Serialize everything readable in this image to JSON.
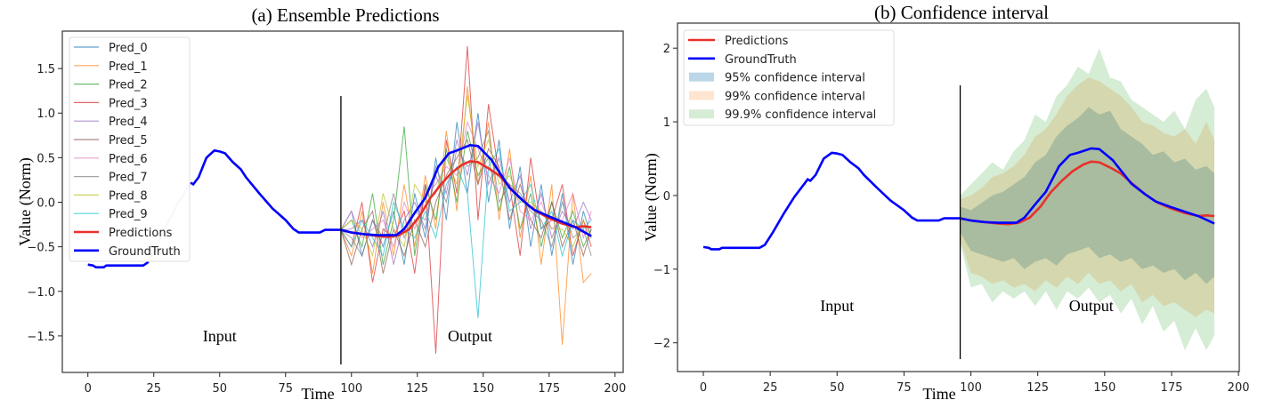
{
  "chart_data": [
    {
      "type": "line",
      "title": "(a) Ensemble Predictions",
      "xlabel": "Time",
      "ylabel": "Value (Norm)",
      "xlim": [
        -9.7,
        203.1
      ],
      "ylim": [
        -1.91,
        1.92
      ],
      "xticks": [
        0,
        25,
        50,
        75,
        100,
        125,
        150,
        175,
        200
      ],
      "yticks": [
        -1.5,
        -1.0,
        -0.5,
        0.0,
        0.5,
        1.0,
        1.5
      ],
      "ytick_labels": [
        "−1.5",
        "−1.0",
        "−0.5",
        "0.0",
        "0.5",
        "1.0",
        "1.5"
      ],
      "grid": false,
      "legend_position": "top-left",
      "split_line_x": 96,
      "annotations": [
        {
          "text": "Input",
          "x": 50,
          "y": -1.5
        },
        {
          "text": "Output",
          "x": 145,
          "y": -1.5
        }
      ],
      "ensemble_x": [
        96,
        100,
        104,
        108,
        112,
        116,
        120,
        124,
        128,
        132,
        136,
        140,
        144,
        148,
        152,
        156,
        160,
        164,
        168,
        172,
        176,
        180,
        184,
        188,
        191
      ],
      "ensemble": [
        {
          "name": "Pred_0",
          "color": "#1f77b4",
          "values": [
            -0.31,
            -0.1,
            -0.6,
            -0.2,
            -0.5,
            -0.1,
            -0.7,
            0.1,
            -0.4,
            0.5,
            -0.2,
            0.9,
            0.1,
            1.0,
            0.0,
            0.7,
            -0.3,
            0.4,
            -0.5,
            0.2,
            -0.6,
            0.1,
            -0.7,
            -0.1,
            -0.4
          ]
        },
        {
          "name": "Pred_1",
          "color": "#ff7f0e",
          "values": [
            -0.31,
            -0.6,
            -0.1,
            -0.8,
            0.0,
            -0.6,
            0.2,
            -0.5,
            0.3,
            -0.3,
            0.8,
            -0.1,
            1.3,
            0.2,
            0.9,
            -0.2,
            0.6,
            -0.4,
            0.3,
            -0.7,
            0.2,
            -1.6,
            0.1,
            -0.9,
            -0.8
          ]
        },
        {
          "name": "Pred_2",
          "color": "#2ca02c",
          "values": [
            -0.31,
            -0.2,
            -0.5,
            0.1,
            -0.7,
            -0.2,
            0.85,
            -0.6,
            0.2,
            -0.2,
            0.6,
            0.0,
            0.8,
            0.3,
            0.5,
            -0.1,
            0.4,
            -0.3,
            0.1,
            -0.5,
            0.0,
            -0.4,
            -0.1,
            -0.5,
            -0.3
          ]
        },
        {
          "name": "Pred_3",
          "color": "#d62728",
          "values": [
            -0.31,
            -0.5,
            0.0,
            -0.9,
            -0.3,
            -0.4,
            -0.1,
            -0.8,
            0.2,
            -1.7,
            0.7,
            0.1,
            1.75,
            -0.2,
            1.1,
            0.3,
            0.2,
            -0.6,
            0.5,
            -0.3,
            -0.2,
            0.2,
            -0.6,
            -0.2,
            -0.5
          ]
        },
        {
          "name": "Pred_4",
          "color": "#9467bd",
          "values": [
            -0.31,
            -0.3,
            -0.2,
            -0.5,
            -0.1,
            -0.7,
            -0.2,
            0.0,
            -0.3,
            0.4,
            0.1,
            0.7,
            0.3,
            0.9,
            0.2,
            0.5,
            0.0,
            0.3,
            -0.3,
            0.1,
            -0.4,
            -0.1,
            -0.3,
            0.0,
            -0.2
          ]
        },
        {
          "name": "Pred_5",
          "color": "#8c564b",
          "values": [
            -0.31,
            -0.7,
            -0.3,
            -0.1,
            -0.8,
            -0.3,
            -0.6,
            -0.2,
            -0.5,
            0.0,
            0.3,
            0.5,
            0.7,
            0.2,
            0.6,
            0.4,
            -0.2,
            0.2,
            -0.2,
            -0.4,
            0.0,
            -0.5,
            -0.2,
            -0.6,
            -0.3
          ]
        },
        {
          "name": "Pred_6",
          "color": "#e377c2",
          "values": [
            -0.31,
            -0.1,
            -0.4,
            -0.3,
            -0.2,
            -0.5,
            0.0,
            -0.3,
            0.1,
            0.2,
            0.4,
            0.3,
            0.9,
            0.6,
            0.3,
            0.1,
            0.5,
            -0.1,
            -0.2,
            0.0,
            -0.3,
            -0.2,
            0.1,
            -0.4,
            -0.1
          ]
        },
        {
          "name": "Pred_7",
          "color": "#7f7f7f",
          "values": [
            -0.31,
            -0.4,
            -0.6,
            -0.2,
            -0.4,
            0.1,
            -0.4,
            -0.1,
            -0.2,
            0.3,
            0.0,
            0.6,
            0.4,
            0.5,
            0.8,
            0.0,
            0.2,
            0.1,
            -0.1,
            -0.2,
            -0.5,
            0.0,
            -0.4,
            -0.3,
            -0.6
          ]
        },
        {
          "name": "Pred_8",
          "color": "#bcbd22",
          "values": [
            -0.31,
            -0.2,
            -0.3,
            -0.6,
            0.1,
            -0.3,
            -0.5,
            0.2,
            0.0,
            0.1,
            0.5,
            0.2,
            1.2,
            0.4,
            0.7,
            0.2,
            0.3,
            0.0,
            0.0,
            -0.1,
            -0.3,
            -0.3,
            -0.5,
            -0.2,
            -0.4
          ]
        },
        {
          "name": "Pred_9",
          "color": "#17becf",
          "values": [
            -0.31,
            -0.5,
            -0.2,
            -0.4,
            -0.6,
            0.0,
            -0.3,
            -0.4,
            -0.1,
            -0.4,
            0.2,
            0.4,
            0.1,
            -1.3,
            0.4,
            0.6,
            -0.1,
            0.0,
            0.2,
            -0.3,
            -0.1,
            -0.6,
            -0.2,
            -0.3,
            -0.2
          ]
        }
      ],
      "legend": [
        "Pred_0",
        "Pred_1",
        "Pred_2",
        "Pred_3",
        "Pred_4",
        "Pred_5",
        "Pred_6",
        "Pred_7",
        "Pred_8",
        "Pred_9",
        "Predictions",
        "GroundTruth"
      ]
    },
    {
      "type": "area",
      "title": "(b) Confidence interval",
      "xlabel": "Time",
      "ylabel": "Value (Norm)",
      "xlim": [
        -9.65,
        200.3
      ],
      "ylim": [
        -2.39,
        2.34
      ],
      "xticks": [
        0,
        25,
        50,
        75,
        100,
        125,
        150,
        175,
        200
      ],
      "yticks": [
        -2,
        -1,
        0,
        1,
        2
      ],
      "ytick_labels": [
        "−2",
        "−1",
        "0",
        "1",
        "2"
      ],
      "grid": false,
      "legend_position": "top-left",
      "split_line_x": 96,
      "annotations": [
        {
          "text": "Input",
          "x": 50,
          "y": -1.5
        },
        {
          "text": "Output",
          "x": 145,
          "y": -1.5
        }
      ],
      "band_x": [
        96,
        100,
        104,
        108,
        112,
        116,
        120,
        124,
        128,
        132,
        136,
        140,
        144,
        148,
        152,
        156,
        160,
        164,
        168,
        172,
        176,
        180,
        184,
        188,
        191
      ],
      "bands": [
        {
          "name": "95% confidence interval",
          "color": "#1f77b4",
          "opacity": 0.3,
          "upper": [
            -0.15,
            -0.2,
            -0.1,
            0.0,
            0.05,
            0.15,
            0.25,
            0.45,
            0.55,
            0.8,
            0.95,
            1.05,
            1.2,
            1.1,
            1.15,
            0.9,
            0.8,
            0.7,
            0.55,
            0.6,
            0.45,
            0.5,
            0.35,
            0.4,
            0.3
          ],
          "lower": [
            -0.5,
            -0.75,
            -0.8,
            -0.85,
            -0.9,
            -0.85,
            -1.0,
            -0.9,
            -0.85,
            -0.95,
            -0.8,
            -0.75,
            -0.7,
            -0.85,
            -0.8,
            -0.9,
            -0.85,
            -1.0,
            -0.95,
            -1.05,
            -1.0,
            -1.15,
            -1.05,
            -1.2,
            -1.1
          ]
        },
        {
          "name": "99% confidence interval",
          "color": "#ff7f0e",
          "opacity": 0.2,
          "upper": [
            -0.05,
            0.0,
            0.1,
            0.25,
            0.3,
            0.4,
            0.55,
            0.8,
            0.9,
            1.1,
            1.35,
            1.5,
            1.6,
            1.55,
            1.45,
            1.35,
            1.2,
            1.0,
            0.95,
            0.85,
            0.8,
            0.9,
            0.7,
            1.0,
            0.75
          ],
          "lower": [
            -0.6,
            -1.05,
            -1.1,
            -1.2,
            -1.15,
            -1.25,
            -1.2,
            -1.3,
            -1.15,
            -1.25,
            -1.1,
            -1.2,
            -1.05,
            -1.2,
            -1.15,
            -1.3,
            -1.2,
            -1.45,
            -1.35,
            -1.5,
            -1.45,
            -1.55,
            -1.65,
            -1.55,
            -1.6
          ]
        },
        {
          "name": "99.9% confidence interval",
          "color": "#2ca02c",
          "opacity": 0.2,
          "upper": [
            0.0,
            0.15,
            0.3,
            0.45,
            0.35,
            0.6,
            0.75,
            1.1,
            1.0,
            1.35,
            1.5,
            1.75,
            1.65,
            2.0,
            1.6,
            1.55,
            1.3,
            1.2,
            1.1,
            1.0,
            1.15,
            0.9,
            1.3,
            1.45,
            1.2
          ],
          "lower": [
            -0.65,
            -1.25,
            -1.2,
            -1.45,
            -1.3,
            -1.4,
            -1.3,
            -1.5,
            -1.3,
            -1.55,
            -1.3,
            -1.4,
            -1.25,
            -1.45,
            -1.35,
            -1.6,
            -1.4,
            -1.75,
            -1.5,
            -1.85,
            -1.7,
            -2.1,
            -1.8,
            -2.1,
            -1.9
          ]
        }
      ],
      "legend": [
        "Predictions",
        "GroundTruth",
        "95% confidence interval",
        "99% confidence interval",
        "99.9% confidence interval"
      ]
    }
  ],
  "ground_truth": {
    "name": "GroundTruth",
    "color": "#0000ff",
    "x": [
      0,
      2,
      3,
      6,
      7,
      21,
      23,
      26,
      30,
      34,
      38,
      39,
      40,
      42,
      45,
      48,
      50,
      52,
      55,
      58,
      60,
      65,
      70,
      75,
      78,
      80,
      88,
      90,
      96,
      100,
      105,
      110,
      117,
      120,
      124,
      128,
      133,
      137,
      140,
      145,
      148,
      153,
      160,
      165,
      169,
      175,
      180,
      185,
      191
    ],
    "y": [
      -0.7,
      -0.71,
      -0.73,
      -0.73,
      -0.71,
      -0.71,
      -0.67,
      -0.5,
      -0.25,
      -0.02,
      0.17,
      0.22,
      0.2,
      0.28,
      0.5,
      0.58,
      0.57,
      0.55,
      0.45,
      0.37,
      0.28,
      0.1,
      -0.07,
      -0.2,
      -0.3,
      -0.34,
      -0.34,
      -0.31,
      -0.31,
      -0.34,
      -0.36,
      -0.37,
      -0.37,
      -0.3,
      -0.12,
      0.05,
      0.4,
      0.55,
      0.58,
      0.64,
      0.63,
      0.48,
      0.16,
      0.02,
      -0.08,
      -0.16,
      -0.22,
      -0.28,
      -0.38
    ]
  },
  "predictions": {
    "name": "Predictions",
    "color": "#e8302a",
    "x": [
      96,
      100,
      105,
      110,
      114,
      118,
      122,
      126,
      130,
      134,
      138,
      142,
      145,
      148,
      152,
      156,
      160,
      165,
      170,
      175,
      180,
      185,
      188,
      191
    ],
    "y": [
      -0.31,
      -0.34,
      -0.36,
      -0.38,
      -0.39,
      -0.37,
      -0.3,
      -0.15,
      0.05,
      0.2,
      0.33,
      0.42,
      0.46,
      0.45,
      0.38,
      0.3,
      0.17,
      0.02,
      -0.1,
      -0.18,
      -0.24,
      -0.28,
      -0.27,
      -0.28
    ]
  }
}
